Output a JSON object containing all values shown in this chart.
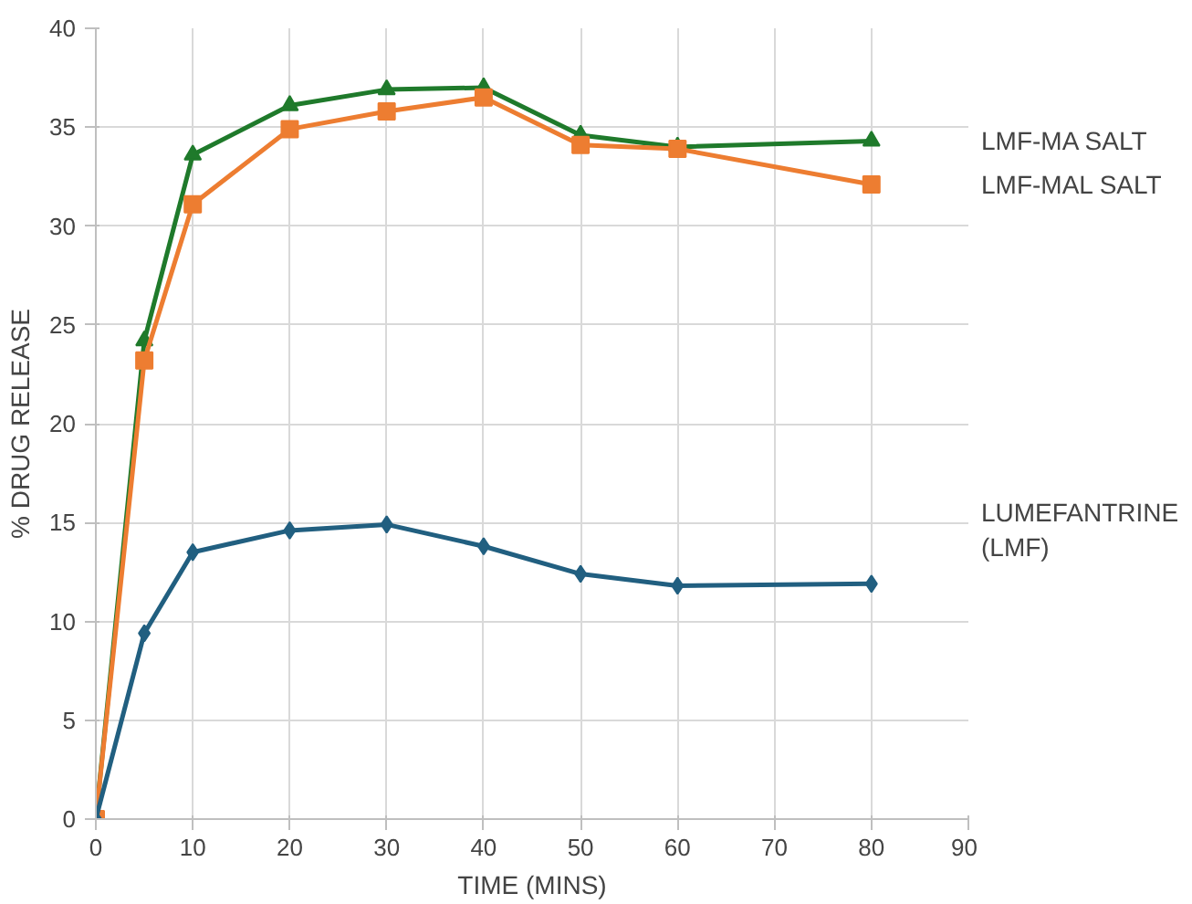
{
  "chart_data": {
    "type": "line",
    "xlabel": "TIME (MINS)",
    "ylabel": "% DRUG RELEASE",
    "x": [
      0,
      5,
      10,
      20,
      30,
      40,
      50,
      60,
      80
    ],
    "series": [
      {
        "name": "LMF-MA SALT",
        "color": "#1f7a2b",
        "marker": "triangle",
        "values": [
          0,
          24.2,
          33.6,
          36.1,
          36.9,
          37.0,
          34.6,
          34.0,
          34.3
        ]
      },
      {
        "name": "LMF-MAL SALT",
        "color": "#ed7d31",
        "marker": "square",
        "values": [
          0,
          23.2,
          31.1,
          34.9,
          35.8,
          36.5,
          34.1,
          33.9,
          32.1
        ]
      },
      {
        "name": "LUMEFANTRINE\n(LMF)",
        "color": "#215f80",
        "marker": "diamond",
        "values": [
          0,
          9.4,
          13.5,
          14.6,
          14.9,
          13.8,
          12.4,
          11.8,
          11.9
        ]
      }
    ],
    "xlim": [
      0,
      90
    ],
    "xticks": [
      0,
      10,
      20,
      30,
      40,
      50,
      60,
      70,
      80,
      90
    ],
    "ylim": [
      0,
      40
    ],
    "yticks": [
      0,
      5,
      10,
      15,
      20,
      25,
      30,
      35,
      40
    ],
    "grid": true
  }
}
